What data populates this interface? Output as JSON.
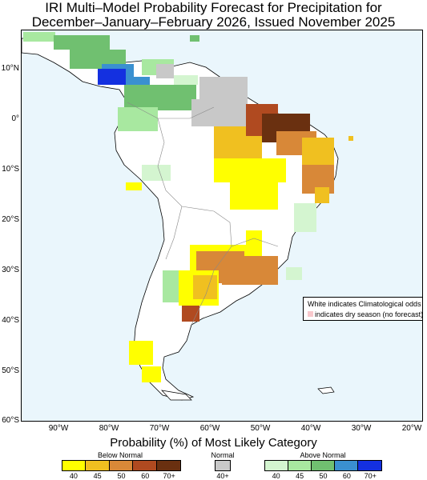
{
  "title_line1": "IRI Multi–Model Probability Forecast for Precipitation for",
  "title_line2": "December–January–February 2026, Issued November 2025",
  "lat_labels": [
    "10°N",
    "0°",
    "10°S",
    "20°S",
    "30°S",
    "40°S",
    "50°S",
    "60°S"
  ],
  "lon_labels": [
    "90°W",
    "80°W",
    "70°W",
    "60°W",
    "50°W",
    "40°W",
    "30°W",
    "20°W"
  ],
  "legend_note": {
    "line1": "White indicates Climatological odds",
    "line2": "indicates dry season (no forecast)",
    "dry_color": "#f8c8cc"
  },
  "legend": {
    "title": "Probability (%) of Most Likely Category",
    "below_normal": {
      "label": "Below Normal",
      "colors": [
        "#ffff00",
        "#f0c020",
        "#d88838",
        "#b04a20",
        "#6a3010"
      ],
      "ticks": [
        "40",
        "45",
        "50",
        "60",
        "70+"
      ]
    },
    "normal": {
      "label": "Normal",
      "colors": [
        "#c8c8c8"
      ],
      "ticks": [
        "40+"
      ]
    },
    "above_normal": {
      "label": "Above Normal",
      "colors": [
        "#d4f5d0",
        "#a8e8a0",
        "#70c070",
        "#3a90d0",
        "#1430e0"
      ],
      "ticks": [
        "40",
        "45",
        "50",
        "60",
        "70+"
      ]
    }
  },
  "colors": {
    "ocean": "#eaf6fc",
    "land": "#ffffff"
  }
}
